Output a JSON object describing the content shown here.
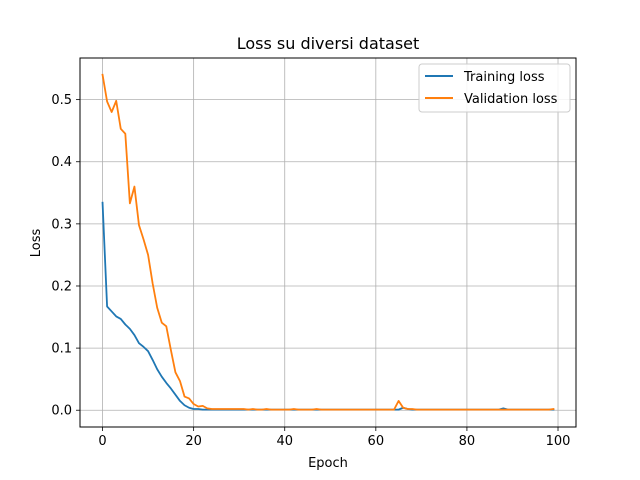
{
  "chart_data": {
    "type": "line",
    "title": "Loss su diversi dataset",
    "xlabel": "Epoch",
    "ylabel": "Loss",
    "xlim": [
      -4.95,
      103.95
    ],
    "ylim": [
      -0.027,
      0.567
    ],
    "xticks": [
      0,
      20,
      40,
      60,
      80,
      100
    ],
    "yticks": [
      0.0,
      0.1,
      0.2,
      0.3,
      0.4,
      0.5
    ],
    "xtick_labels": [
      "0",
      "20",
      "40",
      "60",
      "80",
      "100"
    ],
    "ytick_labels": [
      "0.0",
      "0.1",
      "0.2",
      "0.3",
      "0.4",
      "0.5"
    ],
    "grid": true,
    "legend_position": "top-right",
    "series": [
      {
        "name": "Training loss",
        "color": "#1f77b4",
        "x": [
          0,
          1,
          2,
          3,
          4,
          5,
          6,
          7,
          8,
          9,
          10,
          11,
          12,
          13,
          14,
          15,
          16,
          17,
          18,
          19,
          20,
          21,
          22,
          23,
          24,
          25,
          26,
          27,
          28,
          29,
          30,
          31,
          32,
          33,
          34,
          35,
          36,
          37,
          38,
          39,
          40,
          41,
          42,
          43,
          44,
          45,
          46,
          47,
          48,
          49,
          50,
          51,
          52,
          53,
          54,
          55,
          56,
          57,
          58,
          59,
          60,
          61,
          62,
          63,
          64,
          65,
          66,
          67,
          68,
          69,
          70,
          71,
          72,
          73,
          74,
          75,
          76,
          77,
          78,
          79,
          80,
          81,
          82,
          83,
          84,
          85,
          86,
          87,
          88,
          89,
          90,
          91,
          92,
          93,
          94,
          95,
          96,
          97,
          98,
          99
        ],
        "y": [
          0.334,
          0.167,
          0.159,
          0.151,
          0.147,
          0.138,
          0.131,
          0.121,
          0.108,
          0.102,
          0.095,
          0.081,
          0.066,
          0.054,
          0.044,
          0.035,
          0.025,
          0.015,
          0.008,
          0.004,
          0.002,
          0.002,
          0.001,
          0.001,
          0.001,
          0.001,
          0.001,
          0.001,
          0.001,
          0.001,
          0.001,
          0.001,
          0.001,
          0.001,
          0.001,
          0.001,
          0.001,
          0.001,
          0.001,
          0.001,
          0.001,
          0.001,
          0.001,
          0.001,
          0.001,
          0.001,
          0.001,
          0.001,
          0.001,
          0.001,
          0.001,
          0.001,
          0.001,
          0.001,
          0.001,
          0.001,
          0.001,
          0.001,
          0.001,
          0.001,
          0.001,
          0.001,
          0.001,
          0.001,
          0.001,
          0.001,
          0.004,
          0.002,
          0.001,
          0.001,
          0.001,
          0.001,
          0.001,
          0.001,
          0.001,
          0.001,
          0.001,
          0.001,
          0.001,
          0.001,
          0.001,
          0.001,
          0.001,
          0.001,
          0.001,
          0.001,
          0.001,
          0.001,
          0.003,
          0.001,
          0.001,
          0.001,
          0.001,
          0.001,
          0.001,
          0.001,
          0.001,
          0.001,
          0.001,
          0.001
        ]
      },
      {
        "name": "Validation loss",
        "color": "#ff7f0e",
        "x": [
          0,
          1,
          2,
          3,
          4,
          5,
          6,
          7,
          8,
          9,
          10,
          11,
          12,
          13,
          14,
          15,
          16,
          17,
          18,
          19,
          20,
          21,
          22,
          23,
          24,
          25,
          26,
          27,
          28,
          29,
          30,
          31,
          32,
          33,
          34,
          35,
          36,
          37,
          38,
          39,
          40,
          41,
          42,
          43,
          44,
          45,
          46,
          47,
          48,
          49,
          50,
          51,
          52,
          53,
          54,
          55,
          56,
          57,
          58,
          59,
          60,
          61,
          62,
          63,
          64,
          65,
          66,
          67,
          68,
          69,
          70,
          71,
          72,
          73,
          74,
          75,
          76,
          77,
          78,
          79,
          80,
          81,
          82,
          83,
          84,
          85,
          86,
          87,
          88,
          89,
          90,
          91,
          92,
          93,
          94,
          95,
          96,
          97,
          98,
          99
        ],
        "y": [
          0.54,
          0.497,
          0.48,
          0.498,
          0.453,
          0.445,
          0.333,
          0.36,
          0.298,
          0.275,
          0.25,
          0.204,
          0.165,
          0.141,
          0.135,
          0.097,
          0.061,
          0.047,
          0.022,
          0.019,
          0.01,
          0.006,
          0.007,
          0.003,
          0.002,
          0.002,
          0.002,
          0.002,
          0.002,
          0.002,
          0.002,
          0.002,
          0.001,
          0.002,
          0.001,
          0.001,
          0.002,
          0.001,
          0.001,
          0.001,
          0.001,
          0.001,
          0.002,
          0.001,
          0.001,
          0.001,
          0.001,
          0.002,
          0.001,
          0.001,
          0.001,
          0.001,
          0.001,
          0.001,
          0.001,
          0.001,
          0.001,
          0.001,
          0.001,
          0.001,
          0.001,
          0.001,
          0.001,
          0.001,
          0.001,
          0.015,
          0.004,
          0.002,
          0.002,
          0.001,
          0.001,
          0.001,
          0.001,
          0.001,
          0.001,
          0.001,
          0.001,
          0.001,
          0.001,
          0.001,
          0.001,
          0.001,
          0.001,
          0.001,
          0.001,
          0.001,
          0.001,
          0.001,
          0.001,
          0.001,
          0.001,
          0.001,
          0.001,
          0.001,
          0.001,
          0.001,
          0.001,
          0.001,
          0.001,
          0.002
        ]
      }
    ]
  }
}
